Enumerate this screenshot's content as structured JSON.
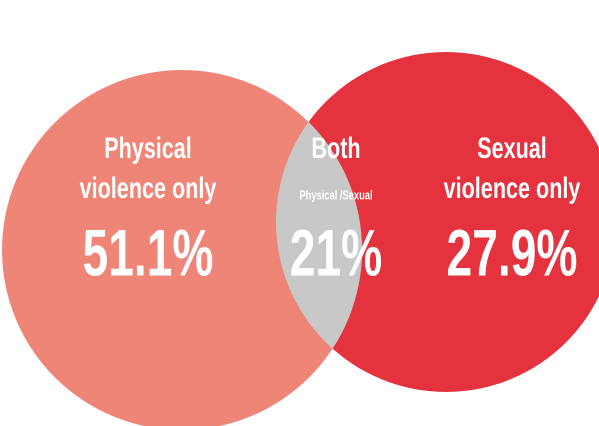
{
  "chart_data": {
    "type": "venn",
    "sets": [
      {
        "label": [
          "Physical",
          "violence only"
        ],
        "color": "#ef8577"
      },
      {
        "label": [
          "Both",
          "Physical /Sexual"
        ],
        "color": "#c8c8c8"
      },
      {
        "label": [
          "Sexual",
          "violence only"
        ],
        "color": "#e4333e"
      }
    ],
    "values": [
      51.1,
      21,
      27.9
    ],
    "value_labels": [
      "51.1%",
      "21%",
      "27.9%"
    ]
  }
}
